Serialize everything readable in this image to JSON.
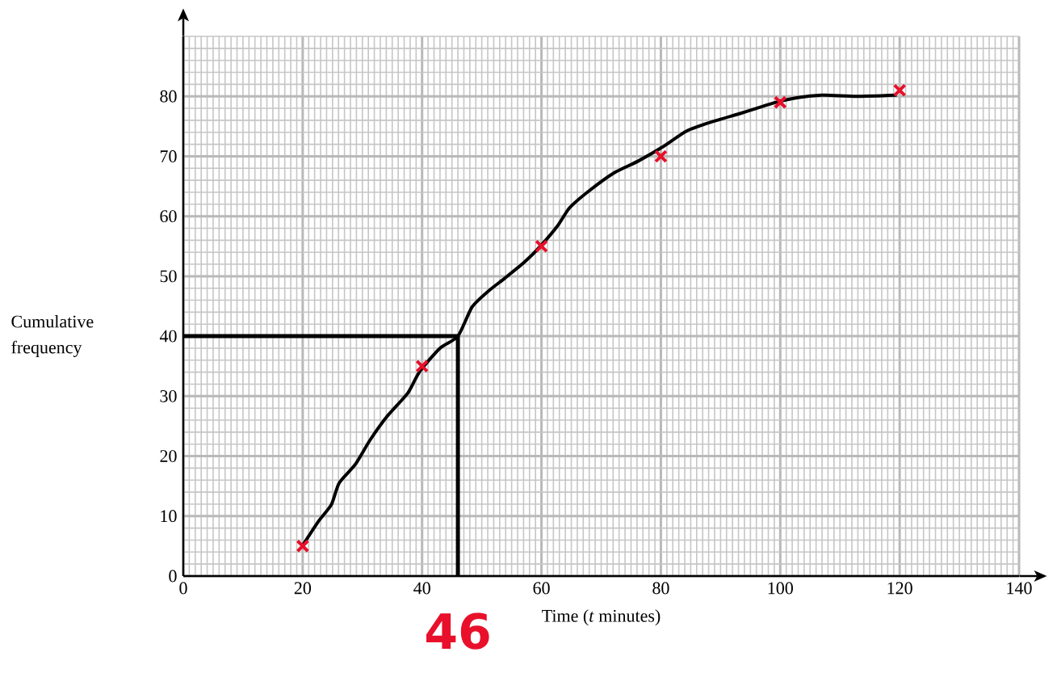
{
  "chart_data": {
    "type": "line",
    "xlabel": "Time (*t* minutes)",
    "ylabel": "Cumulative frequency",
    "xlim": [
      0,
      140
    ],
    "ylim": [
      0,
      90
    ],
    "xticks": [
      0,
      20,
      40,
      60,
      80,
      100,
      120,
      140
    ],
    "yticks": [
      0,
      10,
      20,
      30,
      40,
      50,
      60,
      70,
      80
    ],
    "grid": true,
    "series": [
      {
        "color": "#000000",
        "marker": "none",
        "x": [
          20,
          22.7,
          24.8,
          26.1,
          28.8,
          31.3,
          34.2,
          37.6,
          39.6,
          43,
          46,
          48.4,
          51.2,
          53.9,
          57.2,
          59.9,
          62.7,
          64.7,
          67.8,
          72.1,
          76.2,
          80.2,
          84.3,
          88.4,
          93.8,
          98.9,
          103,
          107.3,
          112.7,
          119.5
        ],
        "values": [
          5.1,
          9.2,
          11.9,
          15.5,
          18.6,
          22.7,
          26.7,
          30.5,
          34.1,
          38,
          40,
          44.9,
          47.6,
          49.7,
          52.4,
          55.1,
          58.4,
          61.4,
          64.1,
          67.2,
          69.2,
          71.5,
          74.2,
          75.7,
          77.3,
          78.9,
          79.8,
          80.2,
          80,
          80.2
        ]
      },
      {
        "type": "scatter",
        "color": "#e8102a",
        "marker": "cross",
        "x": [
          20,
          40,
          60,
          80,
          100,
          120
        ],
        "values": [
          5,
          35,
          55,
          70,
          79,
          81
        ]
      }
    ],
    "ref_lines": [
      {
        "axis": "y",
        "value": 40,
        "color": "#000000"
      },
      {
        "axis": "x",
        "value": 46,
        "color": "#000000"
      }
    ],
    "annotations": [
      "46"
    ]
  }
}
